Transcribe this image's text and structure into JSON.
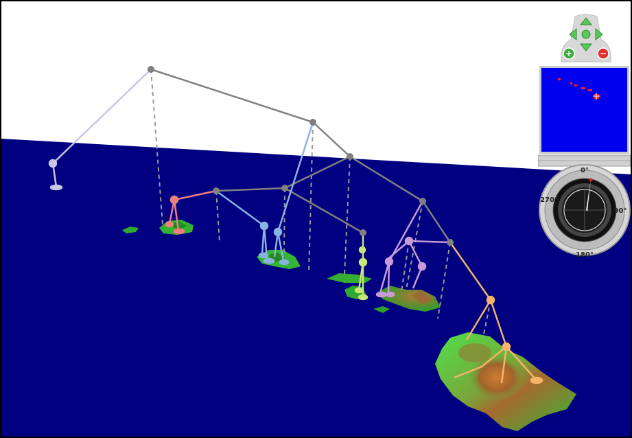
{
  "viewer": {
    "colors": {
      "sky": "#ffffff",
      "ocean": "#000080",
      "root_branch": "#808080",
      "clade_lavender": "#c8c8e6",
      "clade_red": "#f08080",
      "clade_blue": "#8ab4e0",
      "clade_yellowgreen": "#c8e678",
      "clade_purple": "#c89bd8",
      "clade_orange": "#f5b46a",
      "terrain_low": "#3cc83c",
      "terrain_high": "#a0642c"
    },
    "islands": [
      "kauai",
      "oahu",
      "molokai",
      "lanai",
      "maui",
      "hawaii"
    ]
  },
  "navigation": {
    "pan_up": "pan-up",
    "pan_down": "pan-down",
    "pan_left": "pan-left",
    "pan_right": "pan-right",
    "zoom_in_symbol": "+",
    "zoom_out_symbol": "−"
  },
  "compass": {
    "north_label": "0°",
    "east_label": "90°",
    "south_label": "180°",
    "west_label": "270°",
    "heading_marker": "N"
  }
}
